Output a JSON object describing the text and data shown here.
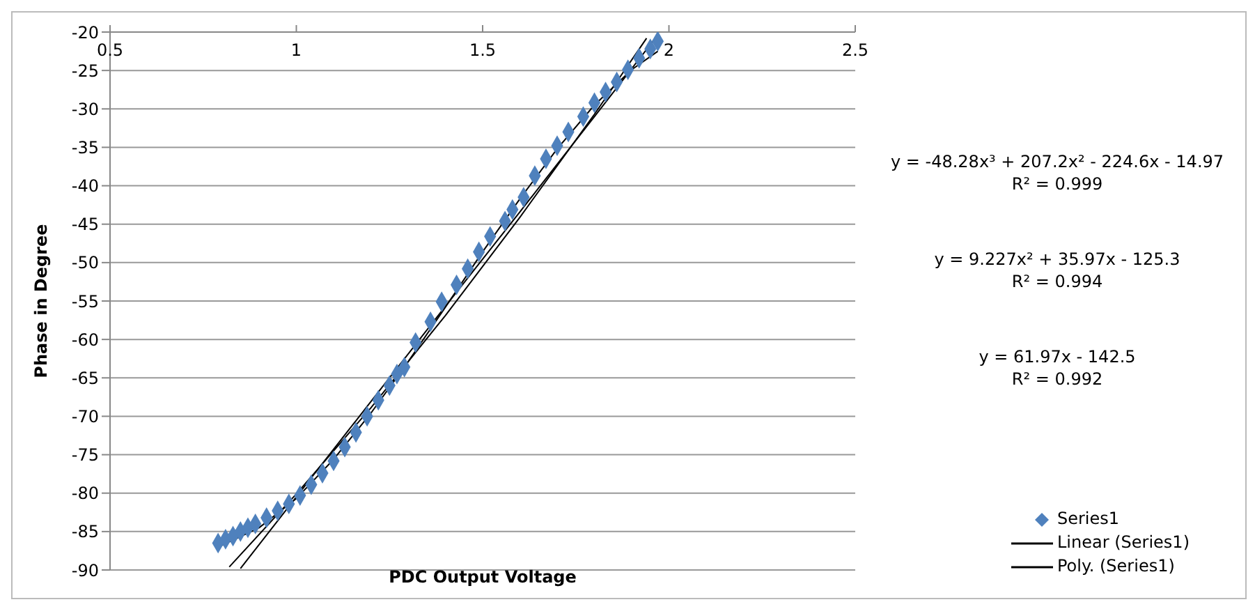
{
  "chart_data": {
    "type": "scatter",
    "xlabel": "PDC Output Voltage",
    "ylabel": "Phase in Degree",
    "xlim": [
      0.5,
      2.5
    ],
    "xticks": [
      0.5,
      1,
      1.5,
      2,
      2.5
    ],
    "ylim": [
      -90,
      -20
    ],
    "yticks": [
      -90,
      -85,
      -80,
      -75,
      -70,
      -65,
      -60,
      -55,
      -50,
      -45,
      -40,
      -35,
      -30,
      -25,
      -20
    ],
    "grid": "y",
    "legend": "bottom right",
    "annotations": [
      "y = -48.28x³ + 207.2x² - 224.6x - 14.97",
      "R² = 0.999",
      "y = 9.227x² + 35.97x - 125.3",
      "R² = 0.994",
      "y = 61.97x - 142.5",
      "R² = 0.992"
    ],
    "series": [
      {
        "name": "Series1",
        "marker": "diamond",
        "color": "#4f81bd",
        "x": [
          0.79,
          0.81,
          0.83,
          0.85,
          0.87,
          0.89,
          0.92,
          0.95,
          0.98,
          1.01,
          1.04,
          1.07,
          1.1,
          1.13,
          1.16,
          1.19,
          1.22,
          1.25,
          1.27,
          1.29,
          1.32,
          1.36,
          1.39,
          1.43,
          1.46,
          1.49,
          1.52,
          1.56,
          1.58,
          1.61,
          1.64,
          1.67,
          1.7,
          1.73,
          1.77,
          1.8,
          1.83,
          1.86,
          1.89,
          1.92,
          1.95,
          1.97
        ],
        "values": [
          -86.5,
          -86.0,
          -85.6,
          -85.0,
          -84.5,
          -84.0,
          -83.2,
          -82.3,
          -81.4,
          -80.3,
          -78.9,
          -77.4,
          -75.8,
          -74.0,
          -72.1,
          -70.0,
          -67.9,
          -66.0,
          -64.5,
          -63.6,
          -60.4,
          -57.7,
          -55.1,
          -52.9,
          -50.8,
          -48.6,
          -46.6,
          -44.6,
          -43.1,
          -41.5,
          -38.7,
          -36.5,
          -34.8,
          -33.0,
          -31.0,
          -29.2,
          -27.8,
          -26.5,
          -24.9,
          -23.4,
          -22.2,
          -21.2
        ]
      },
      {
        "name": "Linear (Series1)",
        "type": "line",
        "marker": "none",
        "color": "#000000",
        "x": [
          0.85,
          1.0,
          1.2,
          1.4,
          1.6,
          1.8,
          1.97
        ],
        "values": [
          -89.8,
          -80.5,
          -68.1,
          -55.7,
          -43.4,
          -31.0,
          -20.4
        ]
      },
      {
        "type": "line",
        "marker": "none",
        "color": "#000000",
        "x": [
          0.82,
          1.0,
          1.2,
          1.4,
          1.6,
          1.8,
          1.94
        ],
        "values": [
          -89.6,
          -80.1,
          -68.9,
          -56.9,
          -44.1,
          -30.7,
          -20.8
        ]
      },
      {
        "name": "Poly. (Series1)",
        "type": "line",
        "marker": "none",
        "color": "#000000",
        "x": [
          0.8,
          0.9,
          1.0,
          1.1,
          1.2,
          1.3,
          1.4,
          1.5,
          1.6,
          1.7,
          1.8,
          1.9,
          1.97
        ],
        "values": [
          -86.8,
          -84.5,
          -80.7,
          -75.6,
          -69.6,
          -62.9,
          -55.8,
          -48.6,
          -41.7,
          -35.2,
          -29.5,
          -24.9,
          -22.5
        ]
      }
    ]
  }
}
